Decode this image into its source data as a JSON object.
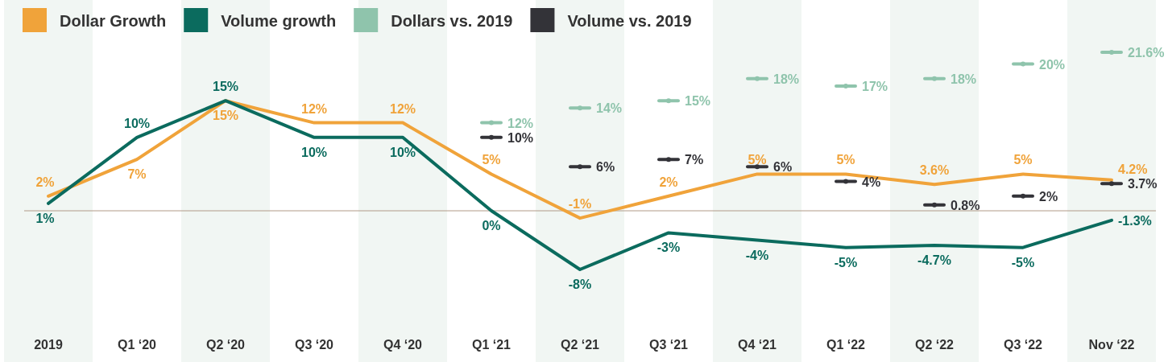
{
  "chart_data": {
    "type": "line",
    "categories": [
      "2019",
      "Q1 ‘20",
      "Q2 ‘20",
      "Q3 ‘20",
      "Q4 ‘20",
      "Q1 ‘21",
      "Q2 ‘21",
      "Q3 ‘21",
      "Q4 ‘21",
      "Q1 ‘22",
      "Q2 ‘22",
      "Q3 ‘22",
      "Nov ‘22"
    ],
    "legend": "top left",
    "series": [
      {
        "name": "Dollar Growth",
        "color": "#f0a33a",
        "values": [
          2,
          7,
          15,
          12,
          12,
          5,
          -1,
          2,
          5,
          5,
          3.6,
          5,
          4.2
        ],
        "value_labels": [
          "2%",
          "7%",
          "15%",
          "12%",
          "12%",
          "5%",
          "-1%",
          "2%",
          "5%",
          "5%",
          "3.6%",
          "5%",
          "4.2%"
        ]
      },
      {
        "name": "Volume growth",
        "color": "#0b6b5e",
        "values": [
          1,
          10,
          15,
          10,
          10,
          0,
          -8,
          -3,
          -4,
          -5,
          -4.7,
          -5,
          -1.3
        ],
        "value_labels": [
          "1%",
          "10%",
          "15%",
          "10%",
          "10%",
          "0%",
          "-8%",
          "-3%",
          "-4%",
          "-5%",
          "-4.7%",
          "-5%",
          "-1.3%"
        ]
      },
      {
        "name": "Dollars vs. 2019",
        "type": "scatter",
        "color": "#8fc4ac",
        "values": [
          null,
          null,
          null,
          null,
          null,
          12,
          14,
          15,
          18,
          17,
          18,
          20,
          21.6
        ],
        "value_labels": [
          null,
          null,
          null,
          null,
          null,
          "12%",
          "14%",
          "15%",
          "18%",
          "17%",
          "18%",
          "20%",
          "21.6%"
        ]
      },
      {
        "name": "Volume vs. 2019",
        "type": "scatter",
        "color": "#333338",
        "values": [
          null,
          null,
          null,
          null,
          null,
          10,
          6,
          7,
          6,
          4,
          0.8,
          2,
          3.7
        ],
        "value_labels": [
          null,
          null,
          null,
          null,
          null,
          "10%",
          "6%",
          "7%",
          "6%",
          "4%",
          "0.8%",
          "2%",
          "3.7%"
        ]
      }
    ]
  }
}
